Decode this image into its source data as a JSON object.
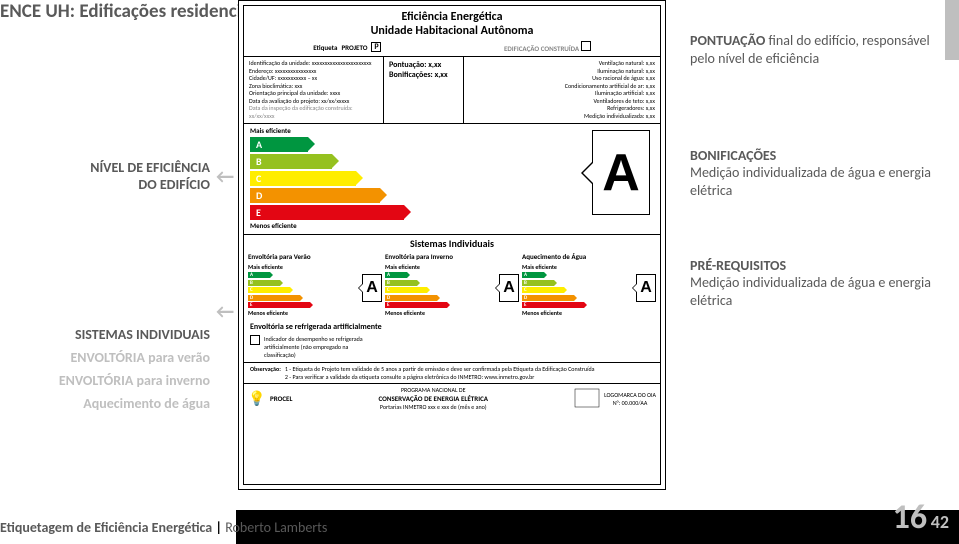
{
  "title": "ENCE UH: Edificações residenciais",
  "left": {
    "nivel_l1": "NÍVEL DE EFICIÊNCIA",
    "nivel_l2": "DO EDIFÍCIO",
    "sistemas": "SISTEMAS INDIVIDUAIS",
    "env_verao": "ENVOLTÓRIA para verão",
    "env_inverno": "ENVOLTÓRIA para inverno",
    "aquec": "Aquecimento de água"
  },
  "right": {
    "pont_hdr": "PONTUAÇÃO",
    "pont_body": " final do edifício, responsável pelo nível de eficiência",
    "bonif_hdr": "BONIFICAÇÕES",
    "bonif_body": "Medição individualizada de água e energia elétrica",
    "pre_hdr": "PRÉ-REQUISITOS",
    "pre_body": "Medição individualizada de água e energia elétrica"
  },
  "label": {
    "title": "Eficiência Energética",
    "sub": "Unidade Habitacional Autônoma",
    "etiqueta": "Etiqueta",
    "projeto": "PROJETO",
    "proj_check": "P",
    "edif_constr": "EDIFICAÇÃO CONSTRUÍDA",
    "id": {
      "l1": "Identificação da unidade: xxxxxxxxxxxxxxxxxxxxxxx",
      "l2": "Endereço: xxxxxxxxxxxxxxxx",
      "l3": "Cidade/UF: xxxxxxxxxxx – xx",
      "l4": "Zona bioclimática: xxx",
      "l5": "Orientação principal da unidade: xxxx",
      "l6": "Data da avaliação do projeto: xx/xx/xxxxx",
      "l7": "Data da inspeção da edificação construída: xx/xx/xxxx"
    },
    "score": {
      "pont": "Pontuação: x,xx",
      "bonif": "Bonificações: x,xx"
    },
    "items": {
      "l1": "Ventilação natural: x,xx",
      "l2": "Iluminação natural: x,xx",
      "l3": "Uso racional de água: x,xx",
      "l4": "Condicionamento artificial de ar: x,xx",
      "l5": "Iluminação artificial: x,xx",
      "l6": "Ventiladores de teto: x,xx",
      "l7": "Refrigeradores: x,xx",
      "l8": "Medição individualizada: x,xx"
    },
    "mais_ef": "Mais eficiente",
    "menos_ef": "Menos eficiente",
    "big_letter": "A",
    "grades": [
      "A",
      "B",
      "C",
      "D",
      "E"
    ],
    "colors": {
      "A": "#009640",
      "B": "#95c11f",
      "C": "#ffed00",
      "D": "#f39200",
      "E": "#e30613"
    },
    "bar_widths_big": {
      "A": 58,
      "B": 82,
      "C": 106,
      "D": 130,
      "E": 154
    },
    "bar_widths_mini": {
      "A": 22,
      "B": 32,
      "C": 42,
      "D": 52,
      "E": 62
    },
    "sistemas_title": "Sistemas Individuais",
    "cols": {
      "verao": "Envoltória para Verão",
      "inverno": "Envoltória para Inverno",
      "aquec": "Aquecimento de Água"
    },
    "mini_letter": "A",
    "refrig": "Envoltória se refrigerada artificialmente",
    "indicador": "Indicador de desempenho se refrigerada artificialmente (não empregado na classificação)",
    "obs_lbl": "Observação:",
    "obs1": "1 - Etiqueta de Projeto tem validade de 5 anos a partir de emissão e deve ser confirmada pela Etiqueta da Edificação Construída",
    "obs2": "2 - Para verificar a validade da etiqueta consulte a página eletrônica do INMETRO: www.inmetro.gov.br",
    "procel": "PROCEL",
    "prog_l1": "PROGRAMA NACIONAL DE",
    "prog_l2": "CONSERVAÇÃO DE ENERGIA ELÉTRICA",
    "prog_l3": "Portarias INMETRO xxx e xxx de (mês e ano)",
    "logo_oia": "LOGOMARCA DO OIA",
    "logo_nr": "N°: 00.000/AA"
  },
  "footer": {
    "part1": "Etiquetagem de Eficiência Energética",
    "part2": "Roberto Lamberts"
  },
  "slide": {
    "cur": "16",
    "total": "42"
  }
}
